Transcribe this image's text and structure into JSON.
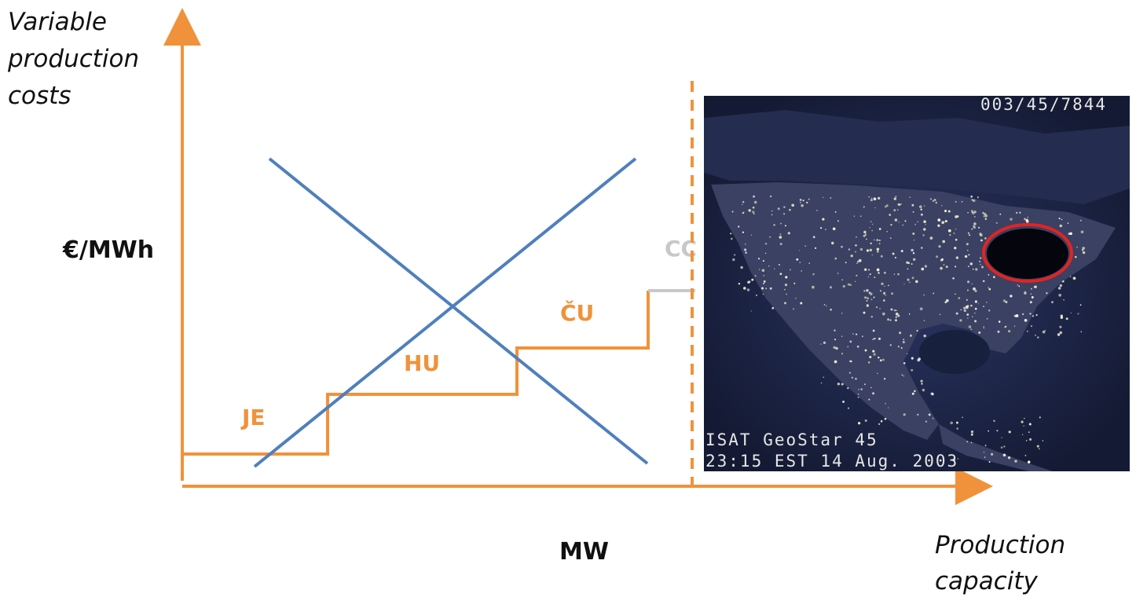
{
  "axes": {
    "y_title": [
      "Variable",
      "production",
      "costs"
    ],
    "y_unit": "€/MWh",
    "x_unit": "MW",
    "x_title": [
      "Production",
      "capacity"
    ]
  },
  "steps": [
    {
      "label": "JE"
    },
    {
      "label": "HU"
    },
    {
      "label": "ČU"
    },
    {
      "label": "CC"
    }
  ],
  "satellite": {
    "code": "003/45/7844",
    "caption_line1": "ISAT GeoStar 45",
    "caption_line2": "23:15 EST 14 Aug. 2003"
  },
  "colors": {
    "axis": "#f0923b",
    "supply_steps": "#f0923b",
    "crossing_lines": "#4f7fbd",
    "highlight_ellipse": "#e52222",
    "night_sky": "#1c2240"
  }
}
